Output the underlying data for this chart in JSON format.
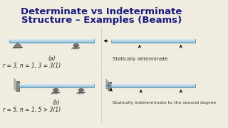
{
  "title_line1": "Determinate vs Indeterminate",
  "title_line2": "Structure – Examples (Beams)",
  "title_color": "#1a1a80",
  "title_fontsize": 9.5,
  "title_fontweight": "bold",
  "bg_color": "#f0ece0",
  "beam_color_top": "#d0e8f5",
  "beam_color_mid": "#a8cce0",
  "beam_color_bot": "#88b8d0",
  "beam_edge_color": "#6090a8",
  "label_color": "#333333",
  "eq_color": "#222222",
  "text_color": "#333333",
  "label_a": "(a)",
  "label_b": "(b)",
  "eq_a": "r = 3, n = 1, 3 = 3(1)",
  "eq_b": "r = 5, n = 1, 5 > 3(1)",
  "text_a": "Statically determinate",
  "text_b": "Statically indeterminate to the second degree",
  "text_fontsize": 5.0,
  "eq_fontsize": 5.5,
  "support_color": "#888888",
  "support_edge": "#444444",
  "arrow_color": "#111111",
  "arrow_color_blue": "#3399cc"
}
